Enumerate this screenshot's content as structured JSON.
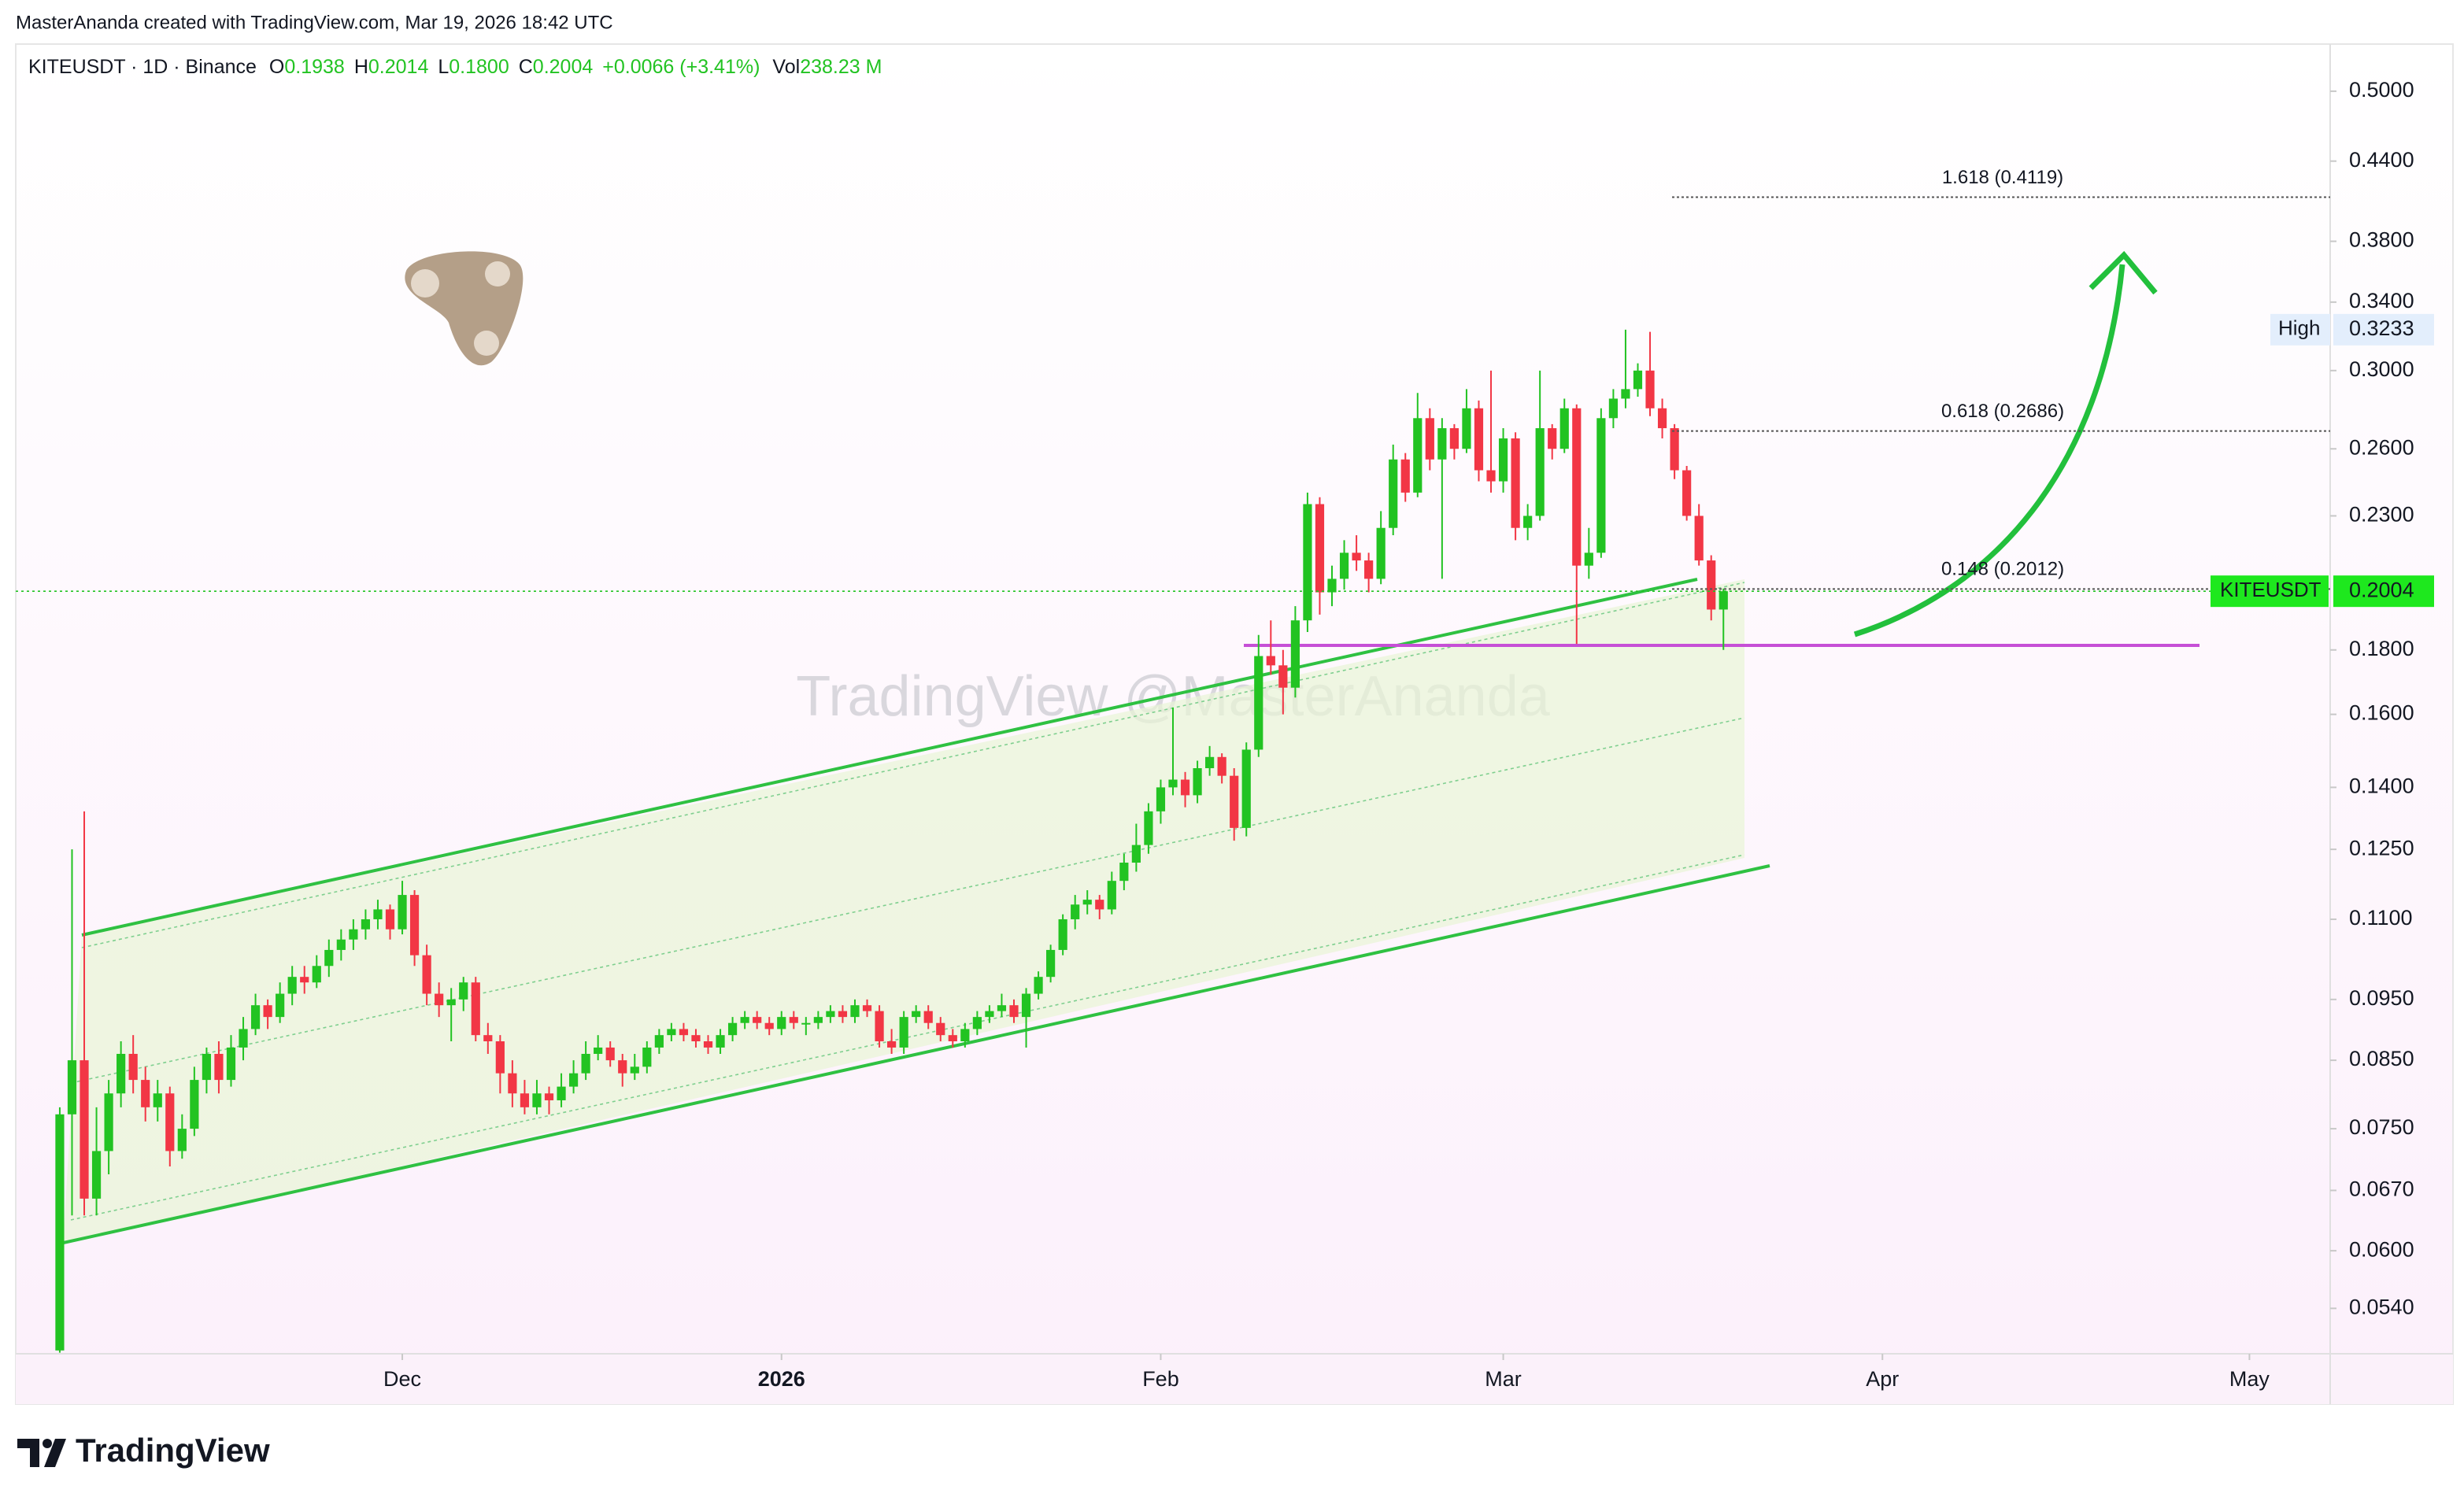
{
  "attribution": "MasterAnanda created with TradingView.com, Mar 19, 2026 18:42 UTC",
  "header": {
    "symbol": "KITEUSDT · 1D · Binance",
    "fields": [
      [
        "O",
        "0.1938"
      ],
      [
        "H",
        "0.2014"
      ],
      [
        "L",
        "0.1800"
      ],
      [
        "C",
        "0.2004"
      ]
    ],
    "change": "+0.0066 (+3.41%)",
    "volume": [
      "Vol",
      "238.23 M"
    ]
  },
  "watermark": "TradingView @MasterAnanda",
  "brand": "TradingView",
  "chart_data": {
    "type": "candlestick",
    "log_scale": true,
    "grid": false,
    "up_color": "#22c322",
    "down_color": "#f23645",
    "xlim": [
      -3.6,
      185.6
    ],
    "xticks": [
      {
        "value": 28,
        "label": "Dec"
      },
      {
        "value": 59,
        "label": "2026"
      },
      {
        "value": 90,
        "label": "Feb"
      },
      {
        "value": 118,
        "label": "Mar"
      },
      {
        "value": 149,
        "label": "Apr"
      },
      {
        "value": 179,
        "label": "May"
      }
    ],
    "ylim": [
      0.0497,
      0.545
    ],
    "yticks": [
      {
        "value": 0.5,
        "label": "0.5000"
      },
      {
        "value": 0.44,
        "label": "0.4400"
      },
      {
        "value": 0.38,
        "label": "0.3800"
      },
      {
        "value": 0.34,
        "label": "0.3400"
      },
      {
        "value": 0.3,
        "label": "0.3000"
      },
      {
        "value": 0.26,
        "label": "0.2600"
      },
      {
        "value": 0.23,
        "label": "0.2300"
      },
      {
        "value": 0.18,
        "label": "0.1800"
      },
      {
        "value": 0.16,
        "label": "0.1600"
      },
      {
        "value": 0.14,
        "label": "0.1400"
      },
      {
        "value": 0.125,
        "label": "0.1250"
      },
      {
        "value": 0.11,
        "label": "0.1100"
      },
      {
        "value": 0.095,
        "label": "0.0950"
      },
      {
        "value": 0.085,
        "label": "0.0850"
      },
      {
        "value": 0.075,
        "label": "0.0750"
      },
      {
        "value": 0.067,
        "label": "0.0670"
      },
      {
        "value": 0.06,
        "label": "0.0600"
      },
      {
        "value": 0.054,
        "label": "0.0540"
      }
    ],
    "fib_levels": [
      {
        "value": 0.4119,
        "label": "1.618 (0.4119)"
      },
      {
        "value": 0.2686,
        "label": "0.618 (0.2686)"
      },
      {
        "value": 0.2012,
        "label": "0.148 (0.2012)"
      }
    ],
    "last_price": {
      "name": "KITEUSDT",
      "value": 0.2004
    },
    "high": {
      "name": "High",
      "value": 0.3233
    },
    "candles": [
      [
        0.05,
        0.078,
        0.0498,
        0.077
      ],
      [
        0.077,
        0.125,
        0.064,
        0.085
      ],
      [
        0.085,
        0.134,
        0.064,
        0.066
      ],
      [
        0.066,
        0.078,
        0.064,
        0.072
      ],
      [
        0.072,
        0.082,
        0.069,
        0.08
      ],
      [
        0.08,
        0.088,
        0.078,
        0.086
      ],
      [
        0.086,
        0.089,
        0.08,
        0.082
      ],
      [
        0.082,
        0.084,
        0.076,
        0.078
      ],
      [
        0.078,
        0.082,
        0.076,
        0.08
      ],
      [
        0.08,
        0.081,
        0.07,
        0.072
      ],
      [
        0.072,
        0.077,
        0.071,
        0.075
      ],
      [
        0.075,
        0.084,
        0.074,
        0.082
      ],
      [
        0.082,
        0.087,
        0.08,
        0.086
      ],
      [
        0.086,
        0.088,
        0.08,
        0.082
      ],
      [
        0.082,
        0.089,
        0.081,
        0.087
      ],
      [
        0.087,
        0.092,
        0.085,
        0.09
      ],
      [
        0.09,
        0.096,
        0.089,
        0.094
      ],
      [
        0.094,
        0.095,
        0.09,
        0.092
      ],
      [
        0.092,
        0.098,
        0.091,
        0.096
      ],
      [
        0.096,
        0.101,
        0.094,
        0.099
      ],
      [
        0.099,
        0.101,
        0.096,
        0.098
      ],
      [
        0.098,
        0.103,
        0.097,
        0.101
      ],
      [
        0.101,
        0.106,
        0.099,
        0.104
      ],
      [
        0.104,
        0.108,
        0.102,
        0.106
      ],
      [
        0.106,
        0.11,
        0.104,
        0.108
      ],
      [
        0.108,
        0.112,
        0.106,
        0.11
      ],
      [
        0.11,
        0.114,
        0.108,
        0.112
      ],
      [
        0.112,
        0.113,
        0.106,
        0.108
      ],
      [
        0.108,
        0.118,
        0.107,
        0.115
      ],
      [
        0.115,
        0.116,
        0.101,
        0.103
      ],
      [
        0.103,
        0.105,
        0.094,
        0.096
      ],
      [
        0.096,
        0.098,
        0.092,
        0.094
      ],
      [
        0.094,
        0.097,
        0.088,
        0.095
      ],
      [
        0.095,
        0.099,
        0.093,
        0.098
      ],
      [
        0.098,
        0.099,
        0.088,
        0.089
      ],
      [
        0.089,
        0.091,
        0.086,
        0.088
      ],
      [
        0.088,
        0.089,
        0.08,
        0.083
      ],
      [
        0.083,
        0.085,
        0.078,
        0.08
      ],
      [
        0.08,
        0.082,
        0.077,
        0.078
      ],
      [
        0.078,
        0.082,
        0.077,
        0.08
      ],
      [
        0.08,
        0.081,
        0.077,
        0.079
      ],
      [
        0.079,
        0.083,
        0.078,
        0.081
      ],
      [
        0.081,
        0.085,
        0.08,
        0.083
      ],
      [
        0.083,
        0.088,
        0.082,
        0.086
      ],
      [
        0.086,
        0.089,
        0.085,
        0.087
      ],
      [
        0.087,
        0.088,
        0.084,
        0.085
      ],
      [
        0.085,
        0.086,
        0.081,
        0.083
      ],
      [
        0.083,
        0.086,
        0.082,
        0.084
      ],
      [
        0.084,
        0.088,
        0.083,
        0.087
      ],
      [
        0.087,
        0.09,
        0.086,
        0.089
      ],
      [
        0.089,
        0.091,
        0.088,
        0.09
      ],
      [
        0.09,
        0.091,
        0.088,
        0.089
      ],
      [
        0.089,
        0.09,
        0.087,
        0.088
      ],
      [
        0.088,
        0.089,
        0.086,
        0.087
      ],
      [
        0.087,
        0.09,
        0.086,
        0.089
      ],
      [
        0.089,
        0.092,
        0.088,
        0.091
      ],
      [
        0.091,
        0.093,
        0.09,
        0.092
      ],
      [
        0.092,
        0.093,
        0.09,
        0.091
      ],
      [
        0.091,
        0.092,
        0.089,
        0.09
      ],
      [
        0.09,
        0.093,
        0.089,
        0.092
      ],
      [
        0.092,
        0.093,
        0.09,
        0.091
      ],
      [
        0.091,
        0.092,
        0.089,
        0.091
      ],
      [
        0.091,
        0.093,
        0.09,
        0.092
      ],
      [
        0.092,
        0.094,
        0.091,
        0.093
      ],
      [
        0.093,
        0.094,
        0.091,
        0.092
      ],
      [
        0.092,
        0.095,
        0.091,
        0.094
      ],
      [
        0.094,
        0.095,
        0.092,
        0.093
      ],
      [
        0.093,
        0.094,
        0.087,
        0.088
      ],
      [
        0.088,
        0.09,
        0.086,
        0.087
      ],
      [
        0.087,
        0.093,
        0.086,
        0.092
      ],
      [
        0.092,
        0.094,
        0.091,
        0.093
      ],
      [
        0.093,
        0.094,
        0.09,
        0.091
      ],
      [
        0.091,
        0.092,
        0.088,
        0.089
      ],
      [
        0.089,
        0.09,
        0.087,
        0.088
      ],
      [
        0.088,
        0.091,
        0.087,
        0.09
      ],
      [
        0.09,
        0.093,
        0.089,
        0.092
      ],
      [
        0.092,
        0.094,
        0.091,
        0.093
      ],
      [
        0.093,
        0.096,
        0.092,
        0.094
      ],
      [
        0.094,
        0.095,
        0.091,
        0.092
      ],
      [
        0.092,
        0.097,
        0.087,
        0.096
      ],
      [
        0.096,
        0.1,
        0.095,
        0.099
      ],
      [
        0.099,
        0.105,
        0.098,
        0.104
      ],
      [
        0.104,
        0.111,
        0.103,
        0.11
      ],
      [
        0.11,
        0.115,
        0.108,
        0.113
      ],
      [
        0.113,
        0.116,
        0.111,
        0.114
      ],
      [
        0.114,
        0.115,
        0.11,
        0.112
      ],
      [
        0.112,
        0.12,
        0.111,
        0.118
      ],
      [
        0.118,
        0.124,
        0.116,
        0.122
      ],
      [
        0.122,
        0.131,
        0.12,
        0.126
      ],
      [
        0.126,
        0.136,
        0.124,
        0.134
      ],
      [
        0.134,
        0.142,
        0.131,
        0.14
      ],
      [
        0.14,
        0.162,
        0.138,
        0.142
      ],
      [
        0.142,
        0.144,
        0.135,
        0.138
      ],
      [
        0.138,
        0.147,
        0.136,
        0.145
      ],
      [
        0.145,
        0.151,
        0.143,
        0.148
      ],
      [
        0.148,
        0.149,
        0.141,
        0.143
      ],
      [
        0.143,
        0.145,
        0.127,
        0.13
      ],
      [
        0.13,
        0.152,
        0.128,
        0.15
      ],
      [
        0.15,
        0.185,
        0.148,
        0.178
      ],
      [
        0.178,
        0.19,
        0.172,
        0.175
      ],
      [
        0.175,
        0.18,
        0.16,
        0.168
      ],
      [
        0.168,
        0.195,
        0.165,
        0.19
      ],
      [
        0.19,
        0.24,
        0.186,
        0.235
      ],
      [
        0.235,
        0.238,
        0.192,
        0.2
      ],
      [
        0.2,
        0.21,
        0.195,
        0.205
      ],
      [
        0.205,
        0.22,
        0.201,
        0.215
      ],
      [
        0.215,
        0.222,
        0.208,
        0.212
      ],
      [
        0.212,
        0.215,
        0.2,
        0.205
      ],
      [
        0.205,
        0.232,
        0.203,
        0.225
      ],
      [
        0.225,
        0.262,
        0.222,
        0.255
      ],
      [
        0.255,
        0.258,
        0.236,
        0.24
      ],
      [
        0.24,
        0.288,
        0.238,
        0.275
      ],
      [
        0.275,
        0.28,
        0.25,
        0.255
      ],
      [
        0.255,
        0.275,
        0.205,
        0.27
      ],
      [
        0.27,
        0.272,
        0.255,
        0.26
      ],
      [
        0.26,
        0.29,
        0.258,
        0.28
      ],
      [
        0.28,
        0.284,
        0.245,
        0.25
      ],
      [
        0.25,
        0.3,
        0.24,
        0.245
      ],
      [
        0.245,
        0.27,
        0.24,
        0.265
      ],
      [
        0.265,
        0.268,
        0.22,
        0.225
      ],
      [
        0.225,
        0.235,
        0.22,
        0.23
      ],
      [
        0.23,
        0.3,
        0.228,
        0.27
      ],
      [
        0.27,
        0.272,
        0.255,
        0.26
      ],
      [
        0.26,
        0.285,
        0.258,
        0.28
      ],
      [
        0.28,
        0.282,
        0.182,
        0.21
      ],
      [
        0.21,
        0.225,
        0.205,
        0.215
      ],
      [
        0.215,
        0.28,
        0.213,
        0.275
      ],
      [
        0.275,
        0.29,
        0.27,
        0.285
      ],
      [
        0.285,
        0.3233,
        0.28,
        0.29
      ],
      [
        0.29,
        0.304,
        0.286,
        0.3
      ],
      [
        0.3,
        0.322,
        0.276,
        0.28
      ],
      [
        0.28,
        0.285,
        0.265,
        0.27
      ],
      [
        0.27,
        0.272,
        0.246,
        0.25
      ],
      [
        0.25,
        0.252,
        0.228,
        0.23
      ],
      [
        0.23,
        0.235,
        0.21,
        0.212
      ],
      [
        0.212,
        0.214,
        0.19,
        0.1938
      ],
      [
        0.1938,
        0.2014,
        0.18,
        0.2004
      ]
    ]
  }
}
